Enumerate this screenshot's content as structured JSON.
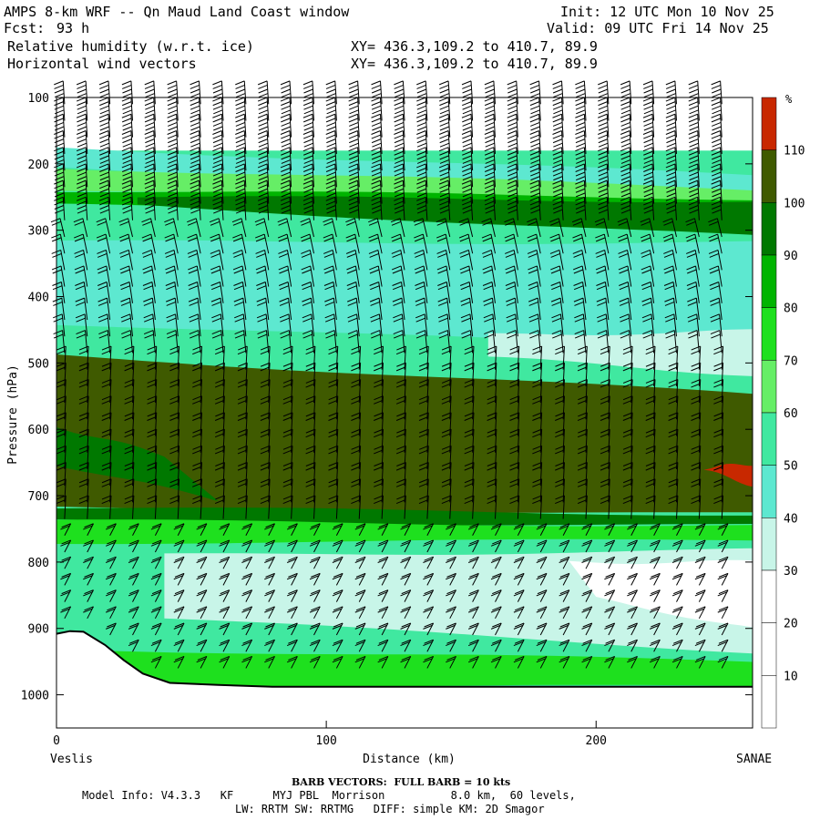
{
  "header": {
    "title": "AMPS 8-km WRF -- Qn Maud Land Coast window",
    "init": "Init: 12 UTC Mon 10 Nov 25",
    "fcst_label": "Fcst:",
    "fcst_value": "93 h",
    "valid": "Valid: 09 UTC Fri 14 Nov 25",
    "field1": "Relative humidity (w.r.t. ice)",
    "field1_xy": "XY= 436.3,109.2 to 410.7, 89.9",
    "field2": "Horizontal wind vectors",
    "field2_xy": "XY= 436.3,109.2 to 410.7, 89.9"
  },
  "footer": {
    "barb_note": "BARB VECTORS:  FULL BARB = 10 kts",
    "model_line1": "Model Info: V4.3.3   KF      MYJ PBL  Morrison          8.0 km,  60 levels,",
    "model_line2": "LW: RRTM SW: RRTMG   DIFF: simple KM: 2D Smagor"
  },
  "colors": {
    "below_30": "#ffffff",
    "30_40": "#c8f5e8",
    "40_50": "#5de8d0",
    "50_60": "#40e8a0",
    "60_70": "#66ee66",
    "70_80": "#1ee01e",
    "80_90": "#00b400",
    "90_100": "#007800",
    "100_110": "#3f5a00",
    "above_110": "#c82800"
  },
  "chart_data": {
    "type": "heatmap",
    "title": "Relative humidity (w.r.t. ice)",
    "xlabel": "Distance (km)",
    "ylabel": "Pressure (hPa)",
    "x_start_label": "Veslis",
    "x_end_label": "SANAE",
    "xlim": [
      0,
      258
    ],
    "ylim": [
      1050,
      100
    ],
    "x_ticks": [
      0,
      100,
      200
    ],
    "y_ticks": [
      100,
      200,
      300,
      400,
      500,
      600,
      700,
      800,
      900,
      1000
    ],
    "colorbar": {
      "unit": "%",
      "levels": [
        10,
        20,
        30,
        40,
        50,
        60,
        70,
        80,
        90,
        100,
        110
      ]
    },
    "terrain_surface": [
      {
        "x": 0,
        "p": 908
      },
      {
        "x": 5,
        "p": 904
      },
      {
        "x": 10,
        "p": 905
      },
      {
        "x": 18,
        "p": 925
      },
      {
        "x": 25,
        "p": 948
      },
      {
        "x": 32,
        "p": 968
      },
      {
        "x": 42,
        "p": 982
      },
      {
        "x": 60,
        "p": 985
      },
      {
        "x": 80,
        "p": 988
      },
      {
        "x": 100,
        "p": 988
      },
      {
        "x": 150,
        "p": 988
      },
      {
        "x": 200,
        "p": 988
      },
      {
        "x": 258,
        "p": 988
      }
    ],
    "layers": [
      {
        "top": [
          [
            0,
            175
          ],
          [
            258,
            218
          ]
        ],
        "bottom": [
          [
            0,
            205
          ],
          [
            258,
            248
          ]
        ],
        "range": "40-50"
      },
      {
        "top": [
          [
            0,
            205
          ],
          [
            258,
            238
          ]
        ],
        "bottom": [
          [
            0,
            238
          ],
          [
            258,
            258
          ]
        ],
        "range": "60-70"
      },
      {
        "top": [
          [
            0,
            240
          ],
          [
            258,
            252
          ]
        ],
        "bottom": [
          [
            0,
            262
          ],
          [
            258,
            290
          ]
        ],
        "range": "80-90"
      },
      {
        "top": [
          [
            30,
            250
          ],
          [
            258,
            256
          ]
        ],
        "bottom": [
          [
            30,
            262
          ],
          [
            258,
            310
          ]
        ],
        "range": "90-100"
      },
      {
        "top": [
          [
            0,
            318
          ],
          [
            258,
            318
          ]
        ],
        "bottom": [
          [
            0,
            440
          ],
          [
            258,
            480
          ]
        ],
        "range": "40-50"
      },
      {
        "top": [
          [
            160,
            458
          ],
          [
            258,
            452
          ]
        ],
        "bottom": [
          [
            160,
            492
          ],
          [
            258,
            518
          ]
        ],
        "range": "30-40"
      },
      {
        "top": [
          [
            0,
            488
          ],
          [
            258,
            548
          ]
        ],
        "bottom": [
          [
            0,
            718
          ],
          [
            258,
            728
          ]
        ],
        "range": "100-110"
      },
      {
        "top": [
          [
            0,
            595
          ],
          [
            40,
            640
          ]
        ],
        "bottom": [
          [
            0,
            652
          ],
          [
            60,
            708
          ]
        ],
        "range": "90-100"
      },
      {
        "top": [
          [
            240,
            658
          ],
          [
            258,
            652
          ]
        ],
        "bottom": [
          [
            240,
            662
          ],
          [
            258,
            684
          ]
        ],
        "range": ">110"
      },
      {
        "top": [
          [
            0,
            718
          ],
          [
            258,
            728
          ]
        ],
        "bottom": [
          [
            0,
            738
          ],
          [
            258,
            745
          ]
        ],
        "range": "90-100"
      },
      {
        "top": [
          [
            0,
            738
          ],
          [
            258,
            745
          ]
        ],
        "bottom": [
          [
            0,
            770
          ],
          [
            258,
            768
          ]
        ],
        "range": "70-80"
      },
      {
        "top": [
          [
            40,
            790
          ],
          [
            258,
            782
          ]
        ],
        "bottom": [
          [
            40,
            885
          ],
          [
            258,
            935
          ]
        ],
        "range": "30-40"
      },
      {
        "top": [
          [
            190,
            800
          ],
          [
            258,
            800
          ]
        ],
        "bottom": [
          [
            200,
            855
          ],
          [
            258,
            900
          ]
        ],
        "range": "<30"
      },
      {
        "top": [
          [
            0,
            930
          ],
          [
            258,
            950
          ]
        ],
        "bottom": [
          [
            0,
            988
          ],
          [
            258,
            988
          ]
        ],
        "range": "70-90"
      }
    ]
  }
}
